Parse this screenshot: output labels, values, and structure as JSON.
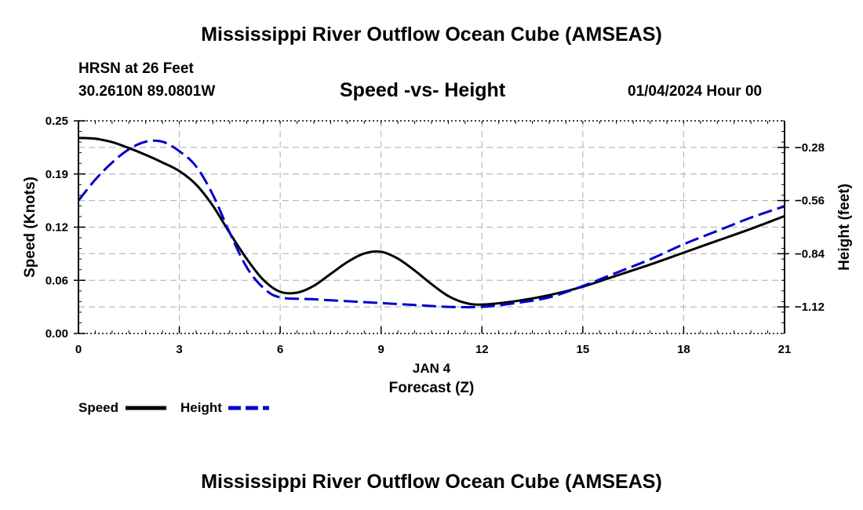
{
  "page": {
    "title": "Mississippi River Outflow Ocean Cube (AMSEAS)",
    "footer_title": "Mississippi River Outflow Ocean Cube (AMSEAS)",
    "station": "HRSN at 26 Feet",
    "coords": "30.2610N  89.0801W",
    "chart_title": "Speed -vs- Height",
    "datetime": "01/04/2024 Hour 00"
  },
  "chart_data": {
    "type": "line",
    "title": "Speed -vs- Height",
    "xlabel": "Forecast (Z)",
    "date_label": "JAN 4",
    "ylabel_left": "Speed (Knots)",
    "ylabel_right": "Height (feet)",
    "xlim": [
      0,
      21
    ],
    "ylim_left": [
      0,
      0.25
    ],
    "ylim_right": [
      -1.26,
      -0.14
    ],
    "x_ticks": [
      0,
      3,
      6,
      9,
      12,
      15,
      18,
      21
    ],
    "x_tick_labels": [
      "0",
      "3",
      "6",
      "9",
      "12",
      "15",
      "18",
      "21"
    ],
    "y_left_ticks": [
      0,
      0.0625,
      0.125,
      0.1875,
      0.25
    ],
    "y_left_tick_labels": [
      "0.00",
      "0.06",
      "0.12",
      "0.19",
      "0.25"
    ],
    "y_right_ticks": [
      -1.12,
      -0.84,
      -0.56,
      -0.28
    ],
    "y_right_tick_labels": [
      "−1.12",
      "−0.84",
      "−0.56",
      "−0.28"
    ],
    "grid": true,
    "series": [
      {
        "name": "Speed",
        "axis": "left",
        "color": "#000000",
        "style": "solid",
        "x": [
          0,
          0.5,
          1,
          1.5,
          2,
          2.5,
          3,
          3.5,
          4,
          4.5,
          5,
          5.5,
          6,
          6.5,
          7,
          7.5,
          8,
          8.5,
          9,
          9.5,
          10,
          10.5,
          11,
          11.5,
          12,
          13,
          14,
          15,
          16,
          17,
          18,
          19,
          20,
          21
        ],
        "values": [
          0.23,
          0.229,
          0.225,
          0.218,
          0.21,
          0.201,
          0.191,
          0.175,
          0.15,
          0.118,
          0.088,
          0.063,
          0.049,
          0.048,
          0.056,
          0.07,
          0.084,
          0.094,
          0.096,
          0.088,
          0.074,
          0.058,
          0.044,
          0.036,
          0.034,
          0.038,
          0.045,
          0.055,
          0.068,
          0.081,
          0.095,
          0.109,
          0.123,
          0.138
        ]
      },
      {
        "name": "Height",
        "axis": "right",
        "color": "#0000cc",
        "style": "dashed",
        "x": [
          0,
          0.5,
          1,
          1.5,
          2,
          2.5,
          3,
          3.5,
          4,
          4.5,
          5,
          5.5,
          6,
          7,
          8,
          9,
          10,
          11,
          12,
          13,
          14,
          15,
          16,
          17,
          18,
          19,
          20,
          21
        ],
        "values": [
          -0.56,
          -0.45,
          -0.36,
          -0.29,
          -0.25,
          -0.25,
          -0.3,
          -0.38,
          -0.53,
          -0.73,
          -0.91,
          -1.02,
          -1.07,
          -1.08,
          -1.09,
          -1.1,
          -1.11,
          -1.12,
          -1.12,
          -1.1,
          -1.07,
          -1.01,
          -0.94,
          -0.87,
          -0.79,
          -0.72,
          -0.65,
          -0.59
        ]
      }
    ]
  },
  "legend": {
    "speed_label": "Speed",
    "height_label": "Height"
  }
}
